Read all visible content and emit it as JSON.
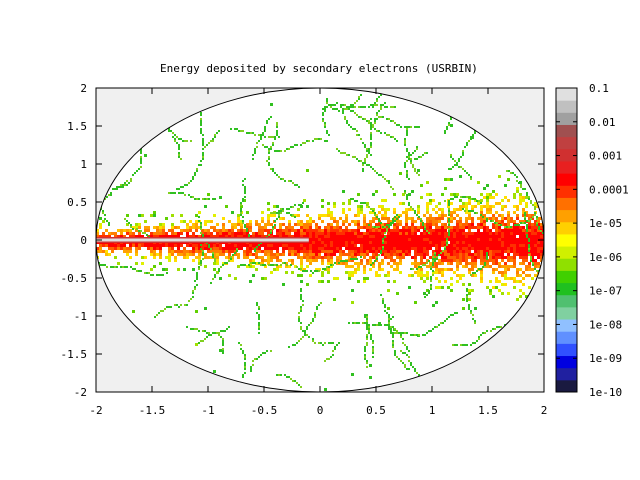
{
  "chart_data": {
    "type": "heatmap",
    "title": "Energy deposited by secondary electrons (USRBIN)",
    "xlabel": "",
    "ylabel": "",
    "xlim": [
      -2,
      2
    ],
    "ylim": [
      -2,
      2
    ],
    "x_ticks": [
      "-2",
      "-1.5",
      "-1",
      "-0.5",
      "0",
      "0.5",
      "1",
      "1.5",
      "2"
    ],
    "y_ticks": [
      "2",
      "1.5",
      "1",
      "0.5",
      "0",
      "-0.5",
      "-1",
      "-1.5",
      "-2"
    ],
    "colorbar": {
      "scale": "log",
      "range": [
        1e-10,
        0.1
      ],
      "labels": [
        "0.1",
        "0.01",
        "0.001",
        "0.0001",
        "1e-05",
        "1e-06",
        "1e-07",
        "1e-08",
        "1e-09",
        "1e-10"
      ],
      "colors": [
        "#1a1a40",
        "#2020a0",
        "#0000e0",
        "#3050ff",
        "#6090ff",
        "#90c0ff",
        "#80d0a0",
        "#50c070",
        "#20c020",
        "#40d000",
        "#90e000",
        "#d0f000",
        "#ffff00",
        "#ffd000",
        "#ffa000",
        "#ff7000",
        "#ff3000",
        "#ff0000",
        "#e82020",
        "#d03030",
        "#c04040",
        "#a05050",
        "#a0a0a0",
        "#c0c0c0",
        "#e0e0e0"
      ]
    },
    "region": "ellipse",
    "background_color": "#f0f0f0",
    "grid": false
  }
}
